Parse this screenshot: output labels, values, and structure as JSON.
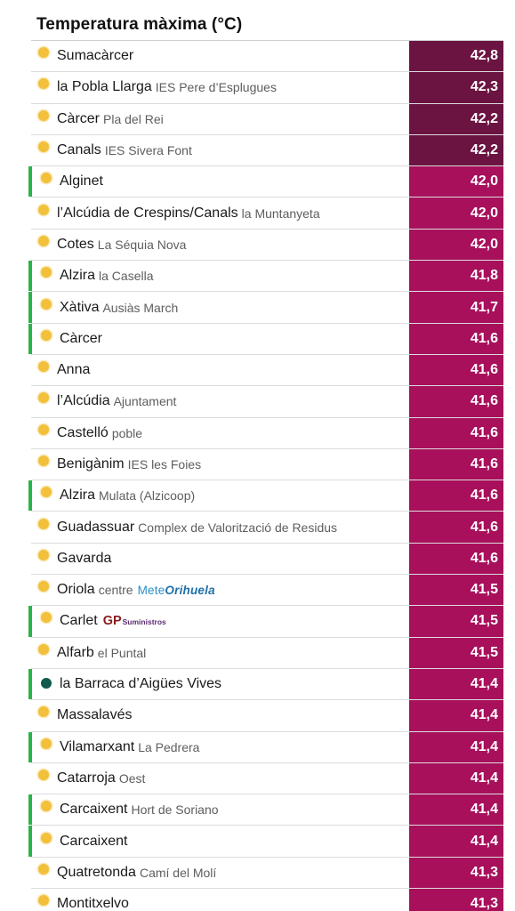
{
  "header": {
    "title": "Temperatura màxima (°C)"
  },
  "colors": {
    "dark_maroon": "#6b1442",
    "magenta": "#a8105c",
    "selected_bar": "#2bb34a",
    "sun": "#f2c03a",
    "dark_dot": "#0f5a4c"
  },
  "stations": [
    {
      "town": "Sumacàrcer",
      "site": "",
      "value": "42,8",
      "tone": "dark",
      "icon": "sun-icon",
      "selected": false
    },
    {
      "town": "la Pobla Llarga",
      "site": "IES Pere d’Esplugues",
      "value": "42,3",
      "tone": "dark",
      "icon": "sun-icon",
      "selected": false
    },
    {
      "town": "Càrcer",
      "site": "Pla del Rei",
      "value": "42,2",
      "tone": "dark",
      "icon": "sun-icon",
      "selected": false
    },
    {
      "town": "Canals",
      "site": "IES Sivera Font",
      "value": "42,2",
      "tone": "dark",
      "icon": "sun-icon",
      "selected": false
    },
    {
      "town": "Alginet",
      "site": "",
      "value": "42,0",
      "tone": "mag",
      "icon": "sun-icon",
      "selected": true
    },
    {
      "town": "l’Alcúdia de Crespins/Canals",
      "site": "la Muntanyeta",
      "value": "42,0",
      "tone": "mag",
      "icon": "sun-icon",
      "selected": false
    },
    {
      "town": "Cotes",
      "site": "La Séquia Nova",
      "value": "42,0",
      "tone": "mag",
      "icon": "sun-icon",
      "selected": false
    },
    {
      "town": "Alzira",
      "site": "la Casella",
      "value": "41,8",
      "tone": "mag",
      "icon": "sun-icon",
      "selected": true
    },
    {
      "town": "Xàtiva",
      "site": "Ausiàs March",
      "value": "41,7",
      "tone": "mag",
      "icon": "sun-icon",
      "selected": true
    },
    {
      "town": "Càrcer",
      "site": "",
      "value": "41,6",
      "tone": "mag",
      "icon": "sun-icon",
      "selected": true
    },
    {
      "town": "Anna",
      "site": "",
      "value": "41,6",
      "tone": "mag",
      "icon": "sun-icon",
      "selected": false
    },
    {
      "town": "l’Alcúdia",
      "site": "Ajuntament",
      "value": "41,6",
      "tone": "mag",
      "icon": "sun-icon",
      "selected": false
    },
    {
      "town": "Castelló",
      "site": "poble",
      "value": "41,6",
      "tone": "mag",
      "icon": "sun-icon",
      "selected": false
    },
    {
      "town": "Benigànim",
      "site": "IES les Foies",
      "value": "41,6",
      "tone": "mag",
      "icon": "sun-icon",
      "selected": false
    },
    {
      "town": "Alzira",
      "site": "Mulata (Alzicoop)",
      "value": "41,6",
      "tone": "mag",
      "icon": "sun-icon",
      "selected": true
    },
    {
      "town": "Guadassuar",
      "site": "Complex de Valorització de Residus",
      "value": "41,6",
      "tone": "mag",
      "icon": "sun-icon",
      "selected": false
    },
    {
      "town": "Gavarda",
      "site": "",
      "value": "41,6",
      "tone": "mag",
      "icon": "sun-icon",
      "selected": false
    },
    {
      "town": "Oriola",
      "site": "centre",
      "logo": "meteo",
      "logo_text_a": "Mete",
      "logo_text_b": "Orihuela",
      "value": "41,5",
      "tone": "mag",
      "icon": "sun-icon",
      "selected": false
    },
    {
      "town": "Carlet",
      "site": "",
      "logo": "gp",
      "logo_text_a": "GP",
      "logo_text_b": "Suministros",
      "value": "41,5",
      "tone": "mag",
      "icon": "sun-icon",
      "selected": true
    },
    {
      "town": "Alfarb",
      "site": "el Puntal",
      "value": "41,5",
      "tone": "mag",
      "icon": "sun-icon",
      "selected": false
    },
    {
      "town": "la Barraca d’Aigües Vives",
      "site": "",
      "value": "41,4",
      "tone": "mag",
      "icon": "dark-dot-icon",
      "selected": true
    },
    {
      "town": "Massalavés",
      "site": "",
      "value": "41,4",
      "tone": "mag",
      "icon": "sun-icon",
      "selected": false
    },
    {
      "town": "Vilamarxant",
      "site": "La Pedrera",
      "value": "41,4",
      "tone": "mag",
      "icon": "sun-icon",
      "selected": true
    },
    {
      "town": "Catarroja",
      "site": "Oest",
      "value": "41,4",
      "tone": "mag",
      "icon": "sun-icon",
      "selected": false
    },
    {
      "town": "Carcaixent",
      "site": "Hort de Soriano",
      "value": "41,4",
      "tone": "mag",
      "icon": "sun-icon",
      "selected": true
    },
    {
      "town": "Carcaixent",
      "site": "",
      "value": "41,4",
      "tone": "mag",
      "icon": "sun-icon",
      "selected": true
    },
    {
      "town": "Quatretonda",
      "site": "Camí del Molí",
      "value": "41,3",
      "tone": "mag",
      "icon": "sun-icon",
      "selected": false
    },
    {
      "town": "Montitxelvo",
      "site": "",
      "value": "41,3",
      "tone": "mag",
      "icon": "sun-icon",
      "selected": false
    }
  ]
}
